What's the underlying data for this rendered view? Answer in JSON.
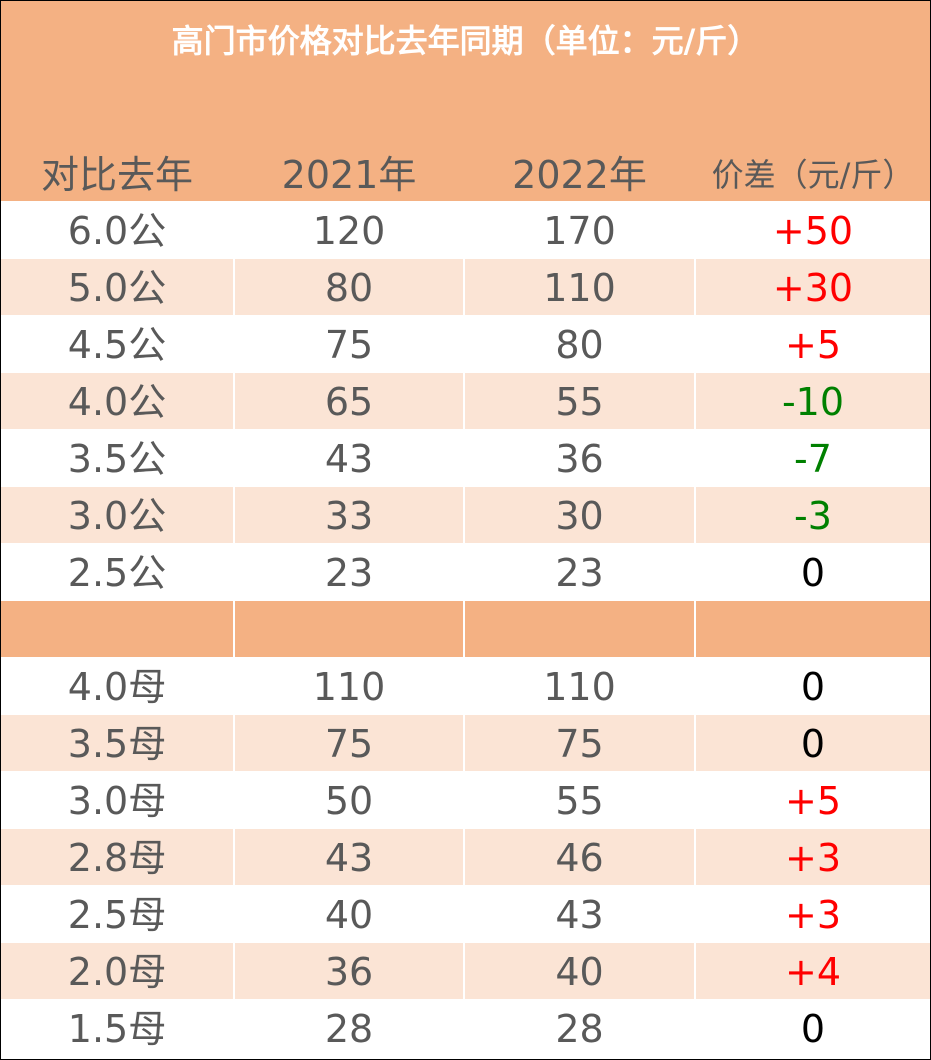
{
  "title": "高门市价格对比去年同期（单位：元/斤）",
  "headers": {
    "col1": "对比去年",
    "col2": "2021年",
    "col3": "2022年",
    "col4": "价差（元/斤）"
  },
  "colors": {
    "header_bg": "#f4b183",
    "band_light": "#fbe4d5",
    "text_gray": "#595959",
    "positive": "#ff0000",
    "negative": "#008000",
    "zero": "#000000"
  },
  "male_rows": [
    {
      "spec": "6.0公",
      "y2021": "120",
      "y2022": "170",
      "diff": "+50",
      "sign": "pos"
    },
    {
      "spec": "5.0公",
      "y2021": "80",
      "y2022": "110",
      "diff": "+30",
      "sign": "pos"
    },
    {
      "spec": "4.5公",
      "y2021": "75",
      "y2022": "80",
      "diff": "+5",
      "sign": "pos"
    },
    {
      "spec": "4.0公",
      "y2021": "65",
      "y2022": "55",
      "diff": "-10",
      "sign": "neg"
    },
    {
      "spec": "3.5公",
      "y2021": "43",
      "y2022": "36",
      "diff": "-7",
      "sign": "neg"
    },
    {
      "spec": "3.0公",
      "y2021": "33",
      "y2022": "30",
      "diff": "-3",
      "sign": "neg"
    },
    {
      "spec": "2.5公",
      "y2021": "23",
      "y2022": "23",
      "diff": "0",
      "sign": "zero"
    }
  ],
  "female_rows": [
    {
      "spec": "4.0母",
      "y2021": "110",
      "y2022": "110",
      "diff": "0",
      "sign": "zero"
    },
    {
      "spec": "3.5母",
      "y2021": "75",
      "y2022": "75",
      "diff": "0",
      "sign": "zero"
    },
    {
      "spec": "3.0母",
      "y2021": "50",
      "y2022": "55",
      "diff": "+5",
      "sign": "pos"
    },
    {
      "spec": "2.8母",
      "y2021": "43",
      "y2022": "46",
      "diff": "+3",
      "sign": "pos"
    },
    {
      "spec": "2.5母",
      "y2021": "40",
      "y2022": "43",
      "diff": "+3",
      "sign": "pos"
    },
    {
      "spec": "2.0母",
      "y2021": "36",
      "y2022": "40",
      "diff": "+4",
      "sign": "pos"
    },
    {
      "spec": "1.5母",
      "y2021": "28",
      "y2022": "28",
      "diff": "0",
      "sign": "zero"
    }
  ]
}
